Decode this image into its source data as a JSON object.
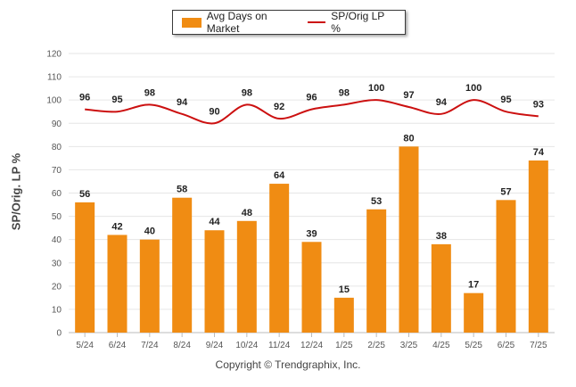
{
  "chart_data": {
    "type": "bar",
    "categories": [
      "5/24",
      "6/24",
      "7/24",
      "8/24",
      "9/24",
      "10/24",
      "11/24",
      "12/24",
      "1/25",
      "2/25",
      "3/25",
      "4/25",
      "5/25",
      "6/25",
      "7/25"
    ],
    "series": [
      {
        "name": "Avg Days on Market",
        "type": "bar",
        "color": "#f08c13",
        "values": [
          56,
          42,
          40,
          58,
          44,
          48,
          64,
          39,
          15,
          53,
          80,
          38,
          17,
          57,
          74
        ]
      },
      {
        "name": "SP/Orig LP %",
        "type": "line",
        "color": "#cc1010",
        "values": [
          96,
          95,
          98,
          94,
          90,
          98,
          92,
          96,
          98,
          100,
          97,
          94,
          100,
          95,
          93
        ]
      }
    ],
    "ylabel": "SP/Orig. LP %",
    "ylim": [
      0,
      120
    ],
    "yticks": [
      0,
      10,
      20,
      30,
      40,
      50,
      60,
      70,
      80,
      90,
      100,
      110,
      120
    ],
    "grid": true,
    "legend_position": "top-center"
  },
  "footer": {
    "copyright": "Copyright © Trendgraphix, Inc."
  }
}
